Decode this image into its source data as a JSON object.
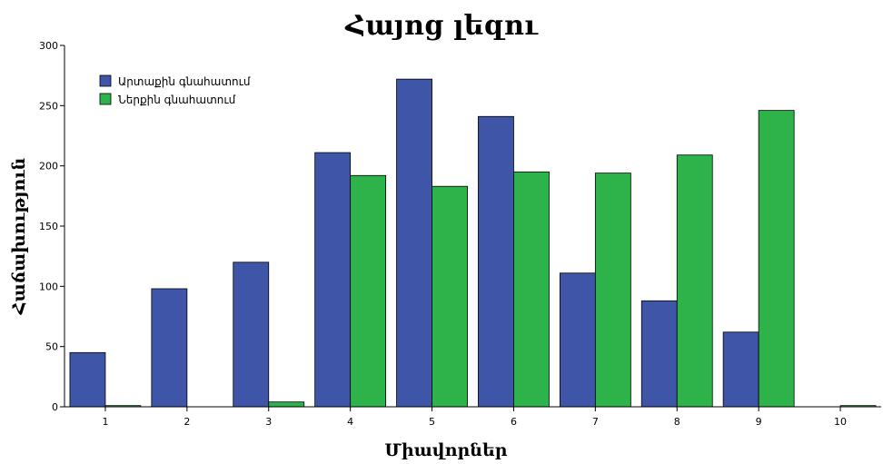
{
  "chart_data": {
    "type": "bar",
    "title": "Հայոց լեզու",
    "xlabel": "Միավորներ",
    "ylabel": "Հաճախություն",
    "categories": [
      "1",
      "2",
      "3",
      "4",
      "5",
      "6",
      "7",
      "8",
      "9",
      "10"
    ],
    "yticks": [
      "0",
      "50",
      "100",
      "150",
      "200",
      "250",
      "300"
    ],
    "ylim": [
      0,
      300
    ],
    "grid": false,
    "legend_position": "top-left",
    "series": [
      {
        "name": "Արտաքին գնահատում",
        "color": "#3f56a8",
        "values": [
          45,
          98,
          120,
          211,
          272,
          241,
          111,
          88,
          62,
          0
        ]
      },
      {
        "name": "Ներքին գնահատում",
        "color": "#2db34a",
        "values": [
          1,
          0,
          4,
          192,
          183,
          195,
          194,
          209,
          246,
          1
        ]
      }
    ]
  }
}
